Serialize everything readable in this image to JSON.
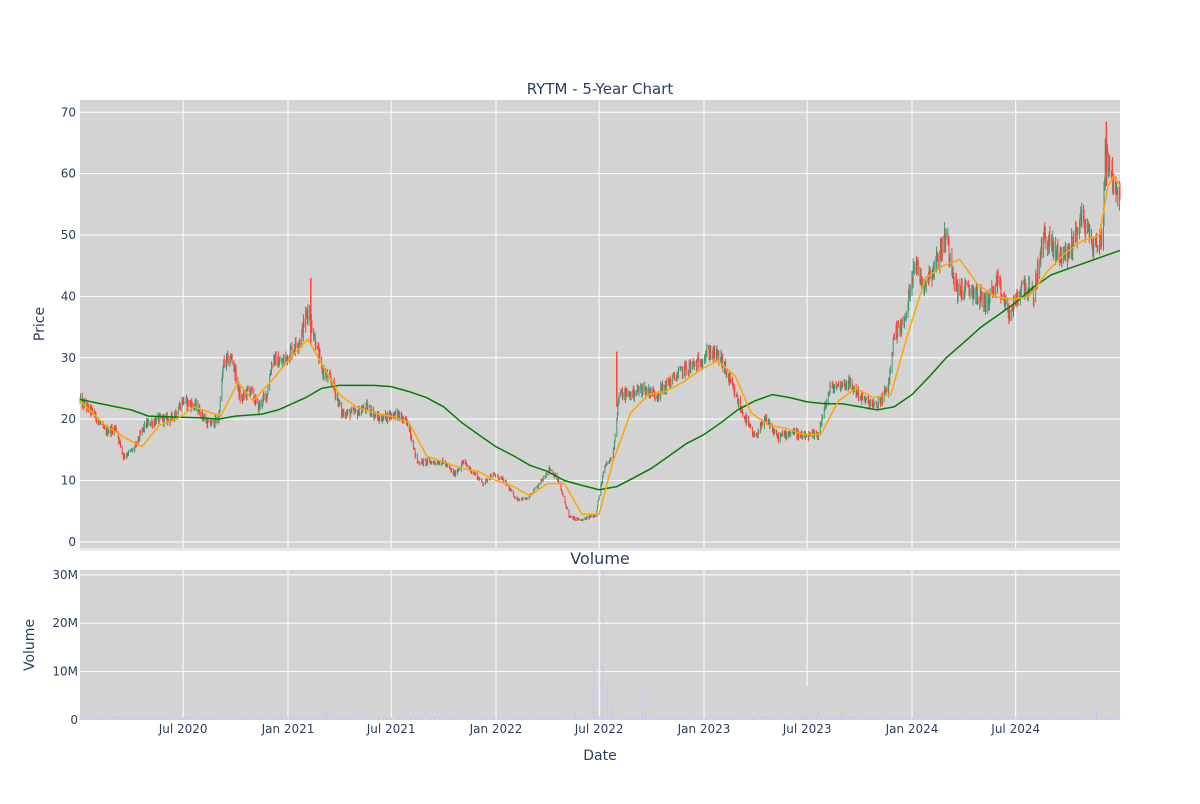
{
  "chart_data": [
    {
      "type": "candlestick",
      "title": "RYTM - 5-Year Chart",
      "xlabel": "",
      "ylabel": "Price",
      "ylim": [
        -1,
        72
      ],
      "yticks": [
        0,
        10,
        20,
        30,
        40,
        50,
        60,
        70
      ],
      "xrange": [
        "2020-01-02",
        "2024-12-31"
      ],
      "xticks": [
        {
          "label": "Jul 2020",
          "date": "2020-07-01"
        },
        {
          "label": "Jan 2021",
          "date": "2021-01-01"
        },
        {
          "label": "Jul 2021",
          "date": "2021-07-01"
        },
        {
          "label": "Jan 2022",
          "date": "2022-01-01"
        },
        {
          "label": "Jul 2022",
          "date": "2022-07-01"
        },
        {
          "label": "Jan 2023",
          "date": "2023-01-01"
        },
        {
          "label": "Jul 2023",
          "date": "2023-07-01"
        },
        {
          "label": "Jan 2024",
          "date": "2024-01-01"
        },
        {
          "label": "Jul 2024",
          "date": "2024-07-01"
        }
      ],
      "grid": true,
      "colors": {
        "up": "#3d9970",
        "down": "#ff4136",
        "ma_short": "#ffa500",
        "ma_long": "#008000",
        "plot_bg": "#d3d3d3"
      },
      "price_path": [
        [
          "2020-01-02",
          23
        ],
        [
          "2020-01-25",
          21
        ],
        [
          "2020-02-15",
          18
        ],
        [
          "2020-03-05",
          18.5
        ],
        [
          "2020-03-18",
          14
        ],
        [
          "2020-04-05",
          15
        ],
        [
          "2020-04-25",
          19
        ],
        [
          "2020-05-20",
          20
        ],
        [
          "2020-06-10",
          20
        ],
        [
          "2020-07-01",
          23
        ],
        [
          "2020-07-25",
          22
        ],
        [
          "2020-08-15",
          19
        ],
        [
          "2020-09-01",
          20
        ],
        [
          "2020-09-10",
          29
        ],
        [
          "2020-09-25",
          30
        ],
        [
          "2020-10-10",
          23
        ],
        [
          "2020-10-25",
          25
        ],
        [
          "2020-11-10",
          22
        ],
        [
          "2020-11-25",
          24
        ],
        [
          "2020-12-05",
          30
        ],
        [
          "2020-12-20",
          29
        ],
        [
          "2021-01-05",
          31
        ],
        [
          "2021-01-22",
          33
        ],
        [
          "2021-02-05",
          38
        ],
        [
          "2021-02-20",
          32
        ],
        [
          "2021-03-01",
          28
        ],
        [
          "2021-03-20",
          26
        ],
        [
          "2021-04-05",
          21
        ],
        [
          "2021-05-01",
          21
        ],
        [
          "2021-05-20",
          22
        ],
        [
          "2021-06-10",
          20
        ],
        [
          "2021-07-10",
          21
        ],
        [
          "2021-08-01",
          19
        ],
        [
          "2021-08-15",
          13
        ],
        [
          "2021-09-05",
          13
        ],
        [
          "2021-10-01",
          13
        ],
        [
          "2021-10-20",
          11
        ],
        [
          "2021-11-05",
          13
        ],
        [
          "2021-11-25",
          11
        ],
        [
          "2021-12-10",
          9.5
        ],
        [
          "2021-12-25",
          11
        ],
        [
          "2022-01-15",
          10
        ],
        [
          "2022-02-05",
          7
        ],
        [
          "2022-02-25",
          7
        ],
        [
          "2022-03-15",
          9
        ],
        [
          "2022-04-05",
          12
        ],
        [
          "2022-04-20",
          10
        ],
        [
          "2022-05-10",
          4
        ],
        [
          "2022-06-01",
          3.5
        ],
        [
          "2022-06-25",
          4.5
        ],
        [
          "2022-07-10",
          12
        ],
        [
          "2022-07-25",
          14
        ],
        [
          "2022-08-05",
          24
        ],
        [
          "2022-08-25",
          24
        ],
        [
          "2022-09-15",
          25
        ],
        [
          "2022-10-10",
          24
        ],
        [
          "2022-11-01",
          26
        ],
        [
          "2022-11-25",
          28
        ],
        [
          "2022-12-20",
          29
        ],
        [
          "2023-01-10",
          31
        ],
        [
          "2023-01-30",
          30
        ],
        [
          "2023-02-20",
          25
        ],
        [
          "2023-03-10",
          21
        ],
        [
          "2023-03-30",
          17
        ],
        [
          "2023-04-20",
          20
        ],
        [
          "2023-05-10",
          17
        ],
        [
          "2023-06-05",
          18
        ],
        [
          "2023-06-25",
          17
        ],
        [
          "2023-07-20",
          17.5
        ],
        [
          "2023-08-10",
          25
        ],
        [
          "2023-09-10",
          26
        ],
        [
          "2023-10-10",
          23
        ],
        [
          "2023-10-30",
          22
        ],
        [
          "2023-11-20",
          25
        ],
        [
          "2023-12-01",
          34
        ],
        [
          "2023-12-20",
          36
        ],
        [
          "2024-01-05",
          46
        ],
        [
          "2024-01-20",
          42
        ],
        [
          "2024-02-10",
          45
        ],
        [
          "2024-03-01",
          50
        ],
        [
          "2024-03-20",
          41
        ],
        [
          "2024-04-15",
          41
        ],
        [
          "2024-05-10",
          39
        ],
        [
          "2024-05-30",
          42
        ],
        [
          "2024-06-20",
          37
        ],
        [
          "2024-07-15",
          42
        ],
        [
          "2024-08-01",
          40
        ],
        [
          "2024-08-20",
          50
        ],
        [
          "2024-09-10",
          47
        ],
        [
          "2024-10-01",
          47
        ],
        [
          "2024-10-25",
          53
        ],
        [
          "2024-11-15",
          48
        ],
        [
          "2024-12-01",
          50
        ],
        [
          "2024-12-05",
          64
        ],
        [
          "2024-12-15",
          61
        ],
        [
          "2024-12-25",
          56
        ],
        [
          "2024-12-31",
          56
        ]
      ],
      "spikes": [
        [
          "2021-02-10",
          43,
          32
        ],
        [
          "2022-08-01",
          31,
          22
        ],
        [
          "2024-12-07",
          68.5,
          58
        ]
      ],
      "ma_short": [
        [
          "2020-01-02",
          23
        ],
        [
          "2020-02-15",
          19
        ],
        [
          "2020-03-20",
          17
        ],
        [
          "2020-04-20",
          15.5
        ],
        [
          "2020-05-20",
          19
        ],
        [
          "2020-06-20",
          20
        ],
        [
          "2020-07-20",
          22
        ],
        [
          "2020-08-20",
          21
        ],
        [
          "2020-09-05",
          20.5
        ],
        [
          "2020-10-05",
          26
        ],
        [
          "2020-11-01",
          23
        ],
        [
          "2020-12-01",
          26
        ],
        [
          "2021-01-15",
          31
        ],
        [
          "2021-02-05",
          33
        ],
        [
          "2021-03-01",
          29
        ],
        [
          "2021-04-01",
          24
        ],
        [
          "2021-05-01",
          22
        ],
        [
          "2021-06-01",
          21
        ],
        [
          "2021-07-01",
          20.5
        ],
        [
          "2021-08-01",
          19.5
        ],
        [
          "2021-09-01",
          14
        ],
        [
          "2021-10-01",
          13
        ],
        [
          "2021-11-01",
          12
        ],
        [
          "2021-12-01",
          11.5
        ],
        [
          "2022-01-01",
          10
        ],
        [
          "2022-02-01",
          9
        ],
        [
          "2022-03-01",
          7.5
        ],
        [
          "2022-04-01",
          9.5
        ],
        [
          "2022-05-01",
          9.5
        ],
        [
          "2022-06-01",
          4.5
        ],
        [
          "2022-07-01",
          4.5
        ],
        [
          "2022-07-25",
          13
        ],
        [
          "2022-08-25",
          21
        ],
        [
          "2022-09-25",
          24
        ],
        [
          "2022-10-25",
          24.5
        ],
        [
          "2022-11-25",
          26
        ],
        [
          "2022-12-25",
          28
        ],
        [
          "2023-01-25",
          29.5
        ],
        [
          "2023-02-25",
          27
        ],
        [
          "2023-03-25",
          21
        ],
        [
          "2023-04-25",
          19
        ],
        [
          "2023-05-25",
          18.5
        ],
        [
          "2023-06-25",
          17.5
        ],
        [
          "2023-07-25",
          17.5
        ],
        [
          "2023-08-25",
          23
        ],
        [
          "2023-09-25",
          25
        ],
        [
          "2023-10-25",
          23.5
        ],
        [
          "2023-11-25",
          24
        ],
        [
          "2023-12-25",
          34
        ],
        [
          "2024-01-25",
          43
        ],
        [
          "2024-02-25",
          45
        ],
        [
          "2024-03-25",
          46
        ],
        [
          "2024-04-25",
          42
        ],
        [
          "2024-05-25",
          40
        ],
        [
          "2024-06-25",
          39.5
        ],
        [
          "2024-07-25",
          40
        ],
        [
          "2024-08-25",
          44
        ],
        [
          "2024-09-25",
          47
        ],
        [
          "2024-10-25",
          49
        ],
        [
          "2024-11-25",
          50
        ],
        [
          "2024-12-10",
          58
        ],
        [
          "2024-12-20",
          59.5
        ],
        [
          "2024-12-31",
          58
        ]
      ],
      "ma_long": [
        [
          "2020-01-02",
          23.2
        ],
        [
          "2020-04-01",
          21.5
        ],
        [
          "2020-05-01",
          20.5
        ],
        [
          "2020-08-01",
          20.2
        ],
        [
          "2020-09-01",
          20
        ],
        [
          "2020-10-01",
          20.5
        ],
        [
          "2020-11-15",
          20.8
        ],
        [
          "2020-12-15",
          21.5
        ],
        [
          "2021-02-01",
          23.5
        ],
        [
          "2021-03-01",
          25
        ],
        [
          "2021-04-01",
          25.5
        ],
        [
          "2021-05-01",
          25.5
        ],
        [
          "2021-06-01",
          25.5
        ],
        [
          "2021-07-01",
          25.3
        ],
        [
          "2021-08-01",
          24.5
        ],
        [
          "2021-09-01",
          23.5
        ],
        [
          "2021-10-01",
          22
        ],
        [
          "2021-11-01",
          19.5
        ],
        [
          "2021-12-01",
          17.5
        ],
        [
          "2022-01-01",
          15.5
        ],
        [
          "2022-02-01",
          14
        ],
        [
          "2022-03-01",
          12.5
        ],
        [
          "2022-04-01",
          11.5
        ],
        [
          "2022-05-01",
          10
        ],
        [
          "2022-06-01",
          9.2
        ],
        [
          "2022-07-01",
          8.5
        ],
        [
          "2022-08-01",
          9
        ],
        [
          "2022-09-01",
          10.5
        ],
        [
          "2022-10-01",
          12
        ],
        [
          "2022-11-01",
          14
        ],
        [
          "2022-12-01",
          16
        ],
        [
          "2023-01-01",
          17.5
        ],
        [
          "2023-02-01",
          19.5
        ],
        [
          "2023-03-01",
          21.5
        ],
        [
          "2023-04-01",
          23
        ],
        [
          "2023-05-01",
          24
        ],
        [
          "2023-06-01",
          23.5
        ],
        [
          "2023-07-01",
          22.8
        ],
        [
          "2023-08-01",
          22.5
        ],
        [
          "2023-09-01",
          22.5
        ],
        [
          "2023-10-01",
          22
        ],
        [
          "2023-11-01",
          21.5
        ],
        [
          "2023-12-01",
          22
        ],
        [
          "2024-01-01",
          24
        ],
        [
          "2024-02-01",
          27
        ],
        [
          "2024-03-01",
          30
        ],
        [
          "2024-04-01",
          32.5
        ],
        [
          "2024-05-01",
          35
        ],
        [
          "2024-06-01",
          37
        ],
        [
          "2024-07-01",
          39
        ],
        [
          "2024-08-01",
          41.5
        ],
        [
          "2024-09-01",
          43.5
        ],
        [
          "2024-10-01",
          44.5
        ],
        [
          "2024-11-01",
          45.5
        ],
        [
          "2024-12-31",
          47.5
        ]
      ]
    },
    {
      "type": "bar",
      "title": "Volume",
      "xlabel": "Date",
      "ylabel": "Volume",
      "ylim": [
        0,
        31000000
      ],
      "yticks": [
        {
          "label": "0",
          "value": 0
        },
        {
          "label": "10M",
          "value": 10000000
        },
        {
          "label": "20M",
          "value": 20000000
        },
        {
          "label": "30M",
          "value": 30000000
        }
      ],
      "xticks": [
        {
          "label": "Jul 2020",
          "date": "2020-07-01"
        },
        {
          "label": "Jan 2021",
          "date": "2021-01-01"
        },
        {
          "label": "Jul 2021",
          "date": "2021-07-01"
        },
        {
          "label": "Jan 2022",
          "date": "2022-01-01"
        },
        {
          "label": "Jul 2022",
          "date": "2022-07-01"
        },
        {
          "label": "Jan 2023",
          "date": "2023-01-01"
        },
        {
          "label": "Jul 2023",
          "date": "2023-07-01"
        },
        {
          "label": "Jan 2024",
          "date": "2024-01-01"
        },
        {
          "label": "Jul 2024",
          "date": "2024-07-01"
        }
      ],
      "grid": true,
      "colors": {
        "bar": "#c8c8f0",
        "plot_bg": "#d3d3d3"
      },
      "baseline": 500000,
      "spikes": [
        [
          "2020-12-20",
          1500000
        ],
        [
          "2021-03-10",
          2000000
        ],
        [
          "2022-05-20",
          1500000
        ],
        [
          "2022-06-22",
          11500000
        ],
        [
          "2022-06-28",
          6000000
        ],
        [
          "2022-07-08",
          30500000
        ],
        [
          "2022-07-15",
          8000000
        ],
        [
          "2022-07-25",
          3000000
        ],
        [
          "2022-09-15",
          7000000
        ],
        [
          "2022-09-20",
          2000000
        ],
        [
          "2023-07-01",
          7000000
        ],
        [
          "2023-07-20",
          2000000
        ],
        [
          "2023-09-01",
          1500000
        ],
        [
          "2024-01-15",
          1200000
        ],
        [
          "2024-11-20",
          2500000
        ]
      ]
    }
  ]
}
